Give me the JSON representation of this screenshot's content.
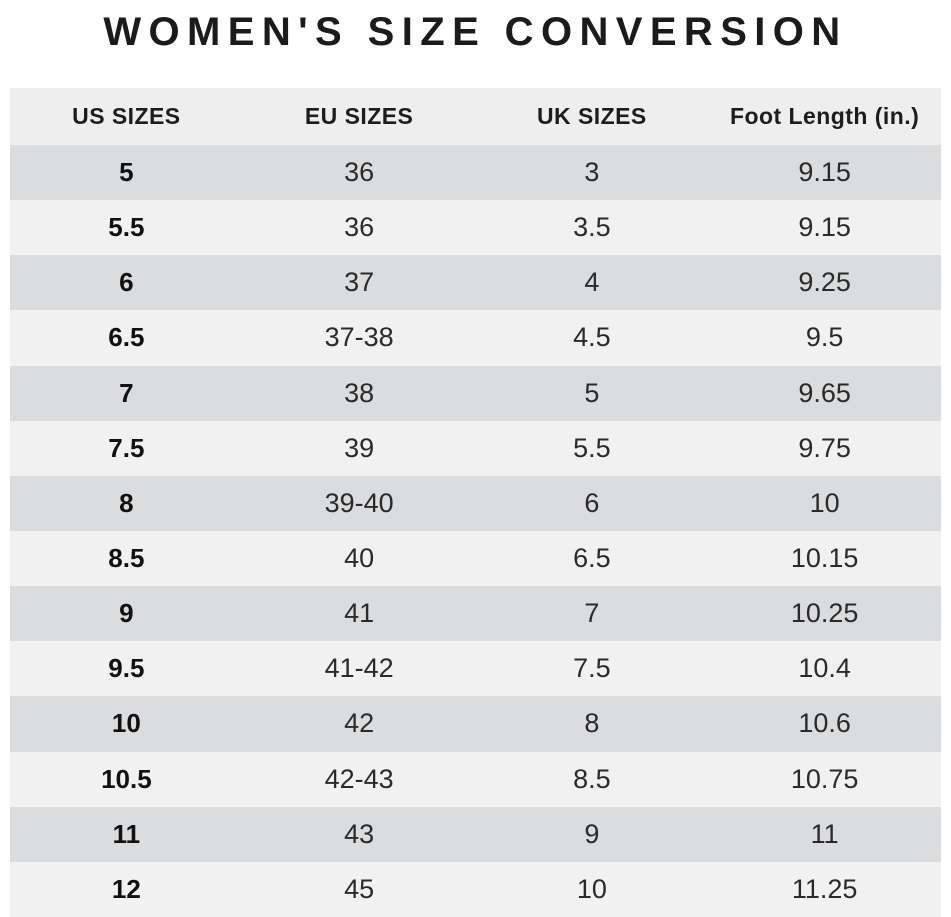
{
  "title": "WOMEN'S SIZE CONVERSION",
  "chart_data": {
    "type": "table",
    "title": "WOMEN'S SIZE CONVERSION",
    "columns": [
      "US SIZES",
      "EU SIZES",
      "UK SIZES",
      "Foot Length (in.)"
    ],
    "rows": [
      [
        "5",
        "36",
        "3",
        "9.15"
      ],
      [
        "5.5",
        "36",
        "3.5",
        "9.15"
      ],
      [
        "6",
        "37",
        "4",
        "9.25"
      ],
      [
        "6.5",
        "37-38",
        "4.5",
        "9.5"
      ],
      [
        "7",
        "38",
        "5",
        "9.65"
      ],
      [
        "7.5",
        "39",
        "5.5",
        "9.75"
      ],
      [
        "8",
        "39-40",
        "6",
        "10"
      ],
      [
        "8.5",
        "40",
        "6.5",
        "10.15"
      ],
      [
        "9",
        "41",
        "7",
        "10.25"
      ],
      [
        "9.5",
        "41-42",
        "7.5",
        "10.4"
      ],
      [
        "10",
        "42",
        "8",
        "10.6"
      ],
      [
        "10.5",
        "42-43",
        "8.5",
        "10.75"
      ],
      [
        "11",
        "43",
        "9",
        "11"
      ],
      [
        "12",
        "45",
        "10",
        "11.25"
      ]
    ],
    "layout": {
      "striped": true,
      "first_row_shade": "dark",
      "first_column_bold": true,
      "legend_position": "none",
      "grid": false
    }
  },
  "colors": {
    "page_background": "#ffffff",
    "header_background": "#eeeeee",
    "row_dark": "#dbdcde",
    "row_light": "#f1f1f2",
    "title_text": "#1b1b1b",
    "body_text": "#2a2a2a"
  }
}
